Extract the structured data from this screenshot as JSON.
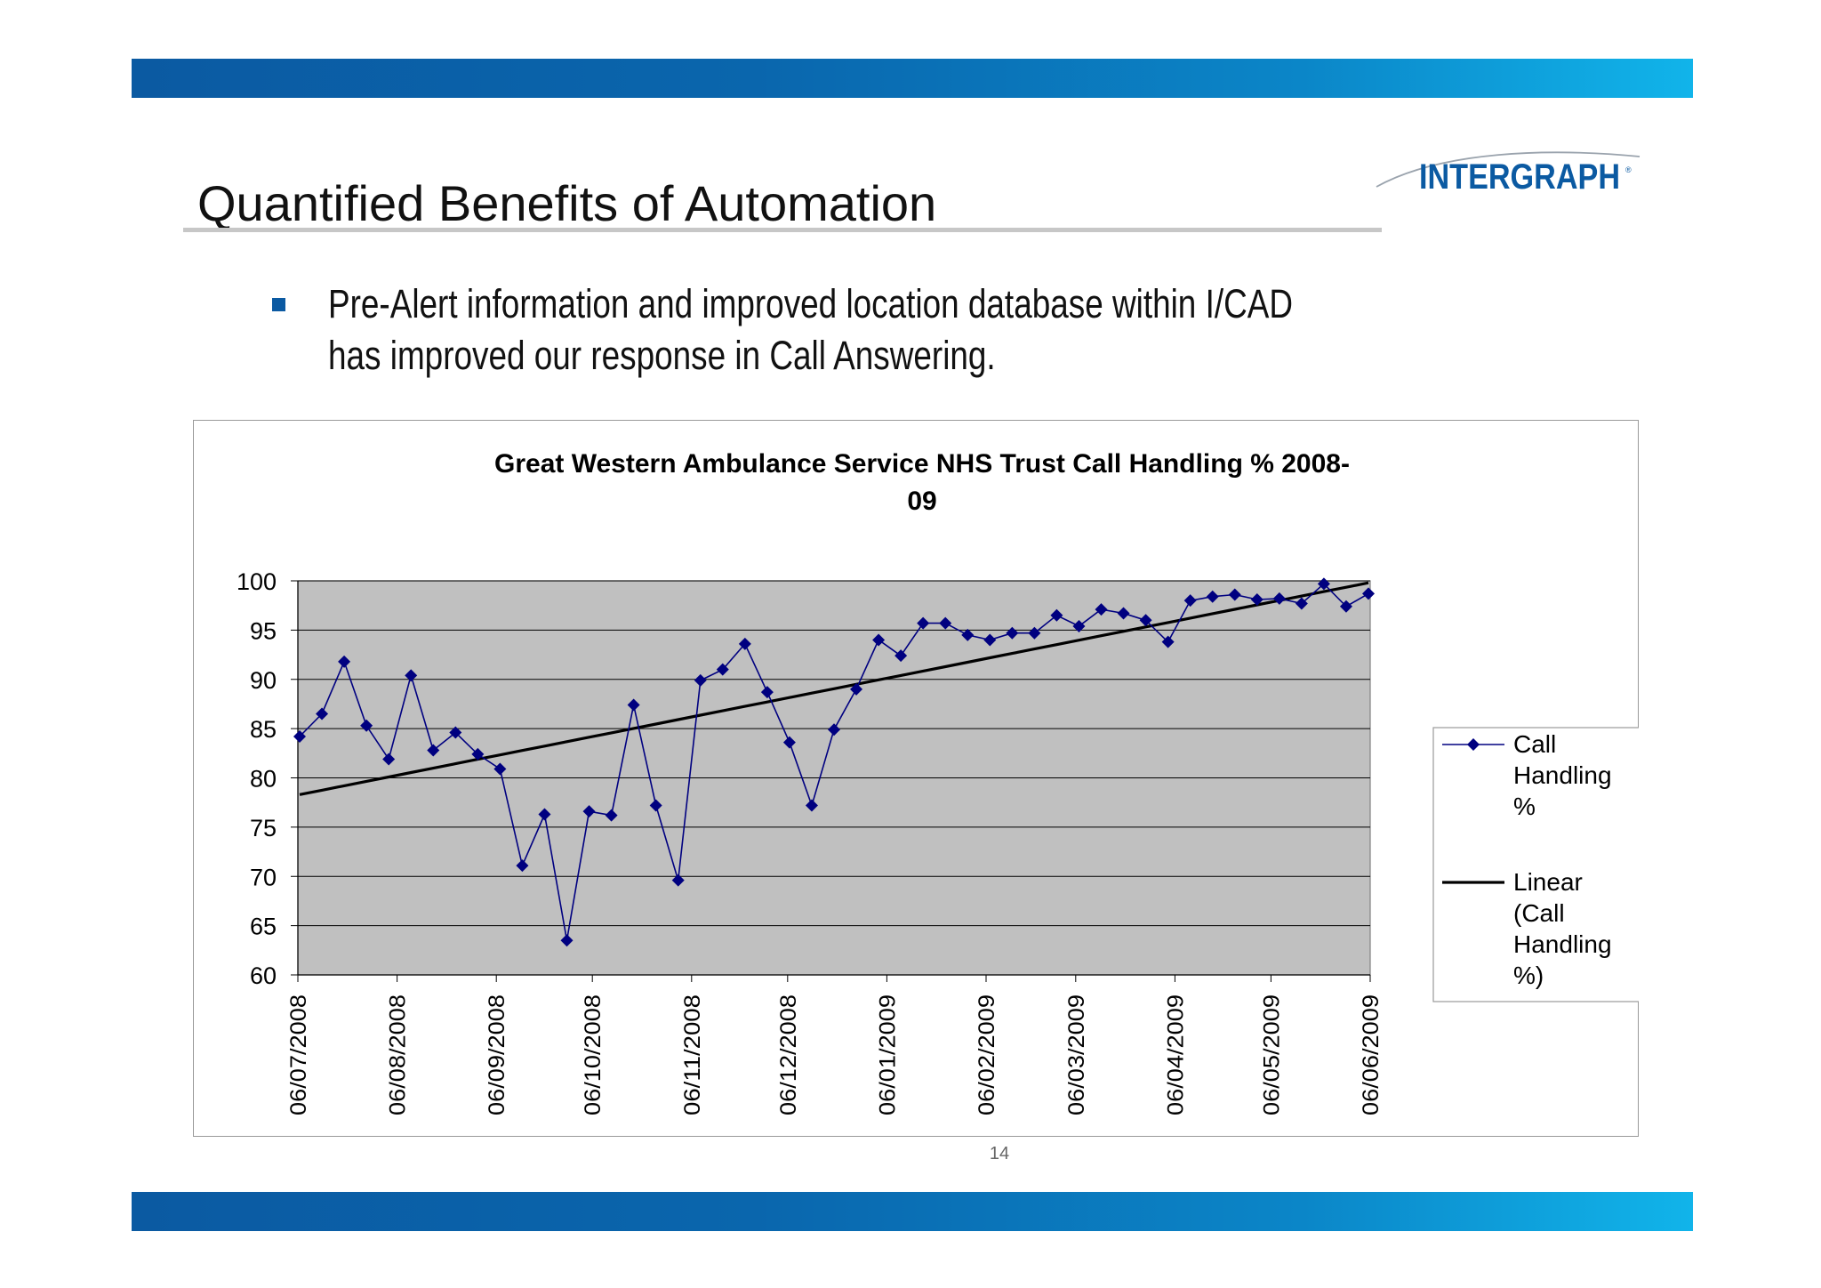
{
  "slide": {
    "title": "Quantified Benefits of Automation",
    "bullet": "Pre-Alert information and improved location database within I/CAD has improved our response in Call Answering.",
    "page_number": "14",
    "logo_text": "INTERGRAPH",
    "colors": {
      "band": "#0b5aa2",
      "band_end": "#11b4ea",
      "logo": "#0b5aa2",
      "bullet": "#0b5aa2"
    }
  },
  "chart_data": {
    "type": "line",
    "title_lines": [
      "Great Western Ambulance Service NHS Trust Call Handling % 2008-",
      "09"
    ],
    "xlabel": "",
    "ylabel": "",
    "ylim": [
      60,
      100
    ],
    "y_ticks": [
      "100",
      "95",
      "90",
      "85",
      "80",
      "75",
      "70",
      "65",
      "60"
    ],
    "x_date_range": [
      "2008-07-06",
      "2009-06-06"
    ],
    "x_tick_labels": [
      "06/07/2008",
      "06/08/2008",
      "06/09/2008",
      "06/10/2008",
      "06/11/2008",
      "06/12/2008",
      "06/01/2009",
      "06/02/2009",
      "06/03/2009",
      "06/04/2009",
      "06/05/2009",
      "06/06/2009"
    ],
    "plot_background": "#c0c0c0",
    "grid": true,
    "legend_position": "right",
    "series": [
      {
        "name": "Call Handling %",
        "legend_lines": [
          "Call",
          "Handling",
          "%"
        ],
        "color": "#000080",
        "marker": "diamond",
        "values": [
          84.2,
          86.5,
          91.8,
          85.3,
          81.9,
          90.4,
          82.8,
          84.6,
          82.4,
          80.9,
          71.1,
          76.3,
          63.5,
          76.6,
          76.2,
          87.4,
          77.2,
          69.6,
          89.9,
          91.0,
          93.6,
          88.7,
          83.6,
          77.2,
          84.9,
          89.0,
          94.0,
          92.4,
          95.7,
          95.7,
          94.5,
          94.0,
          94.7,
          94.7,
          96.5,
          95.4,
          97.1,
          96.7,
          96.0,
          93.8,
          98.0,
          98.4,
          98.6,
          98.1,
          98.2,
          97.7,
          99.7,
          97.4,
          98.7
        ]
      },
      {
        "name": "Linear (Call Handling %)",
        "legend_lines": [
          "Linear",
          "(Call",
          "Handling",
          "%)"
        ],
        "color": "#000000",
        "trend_start": 78.3,
        "trend_end": 99.8
      }
    ]
  }
}
